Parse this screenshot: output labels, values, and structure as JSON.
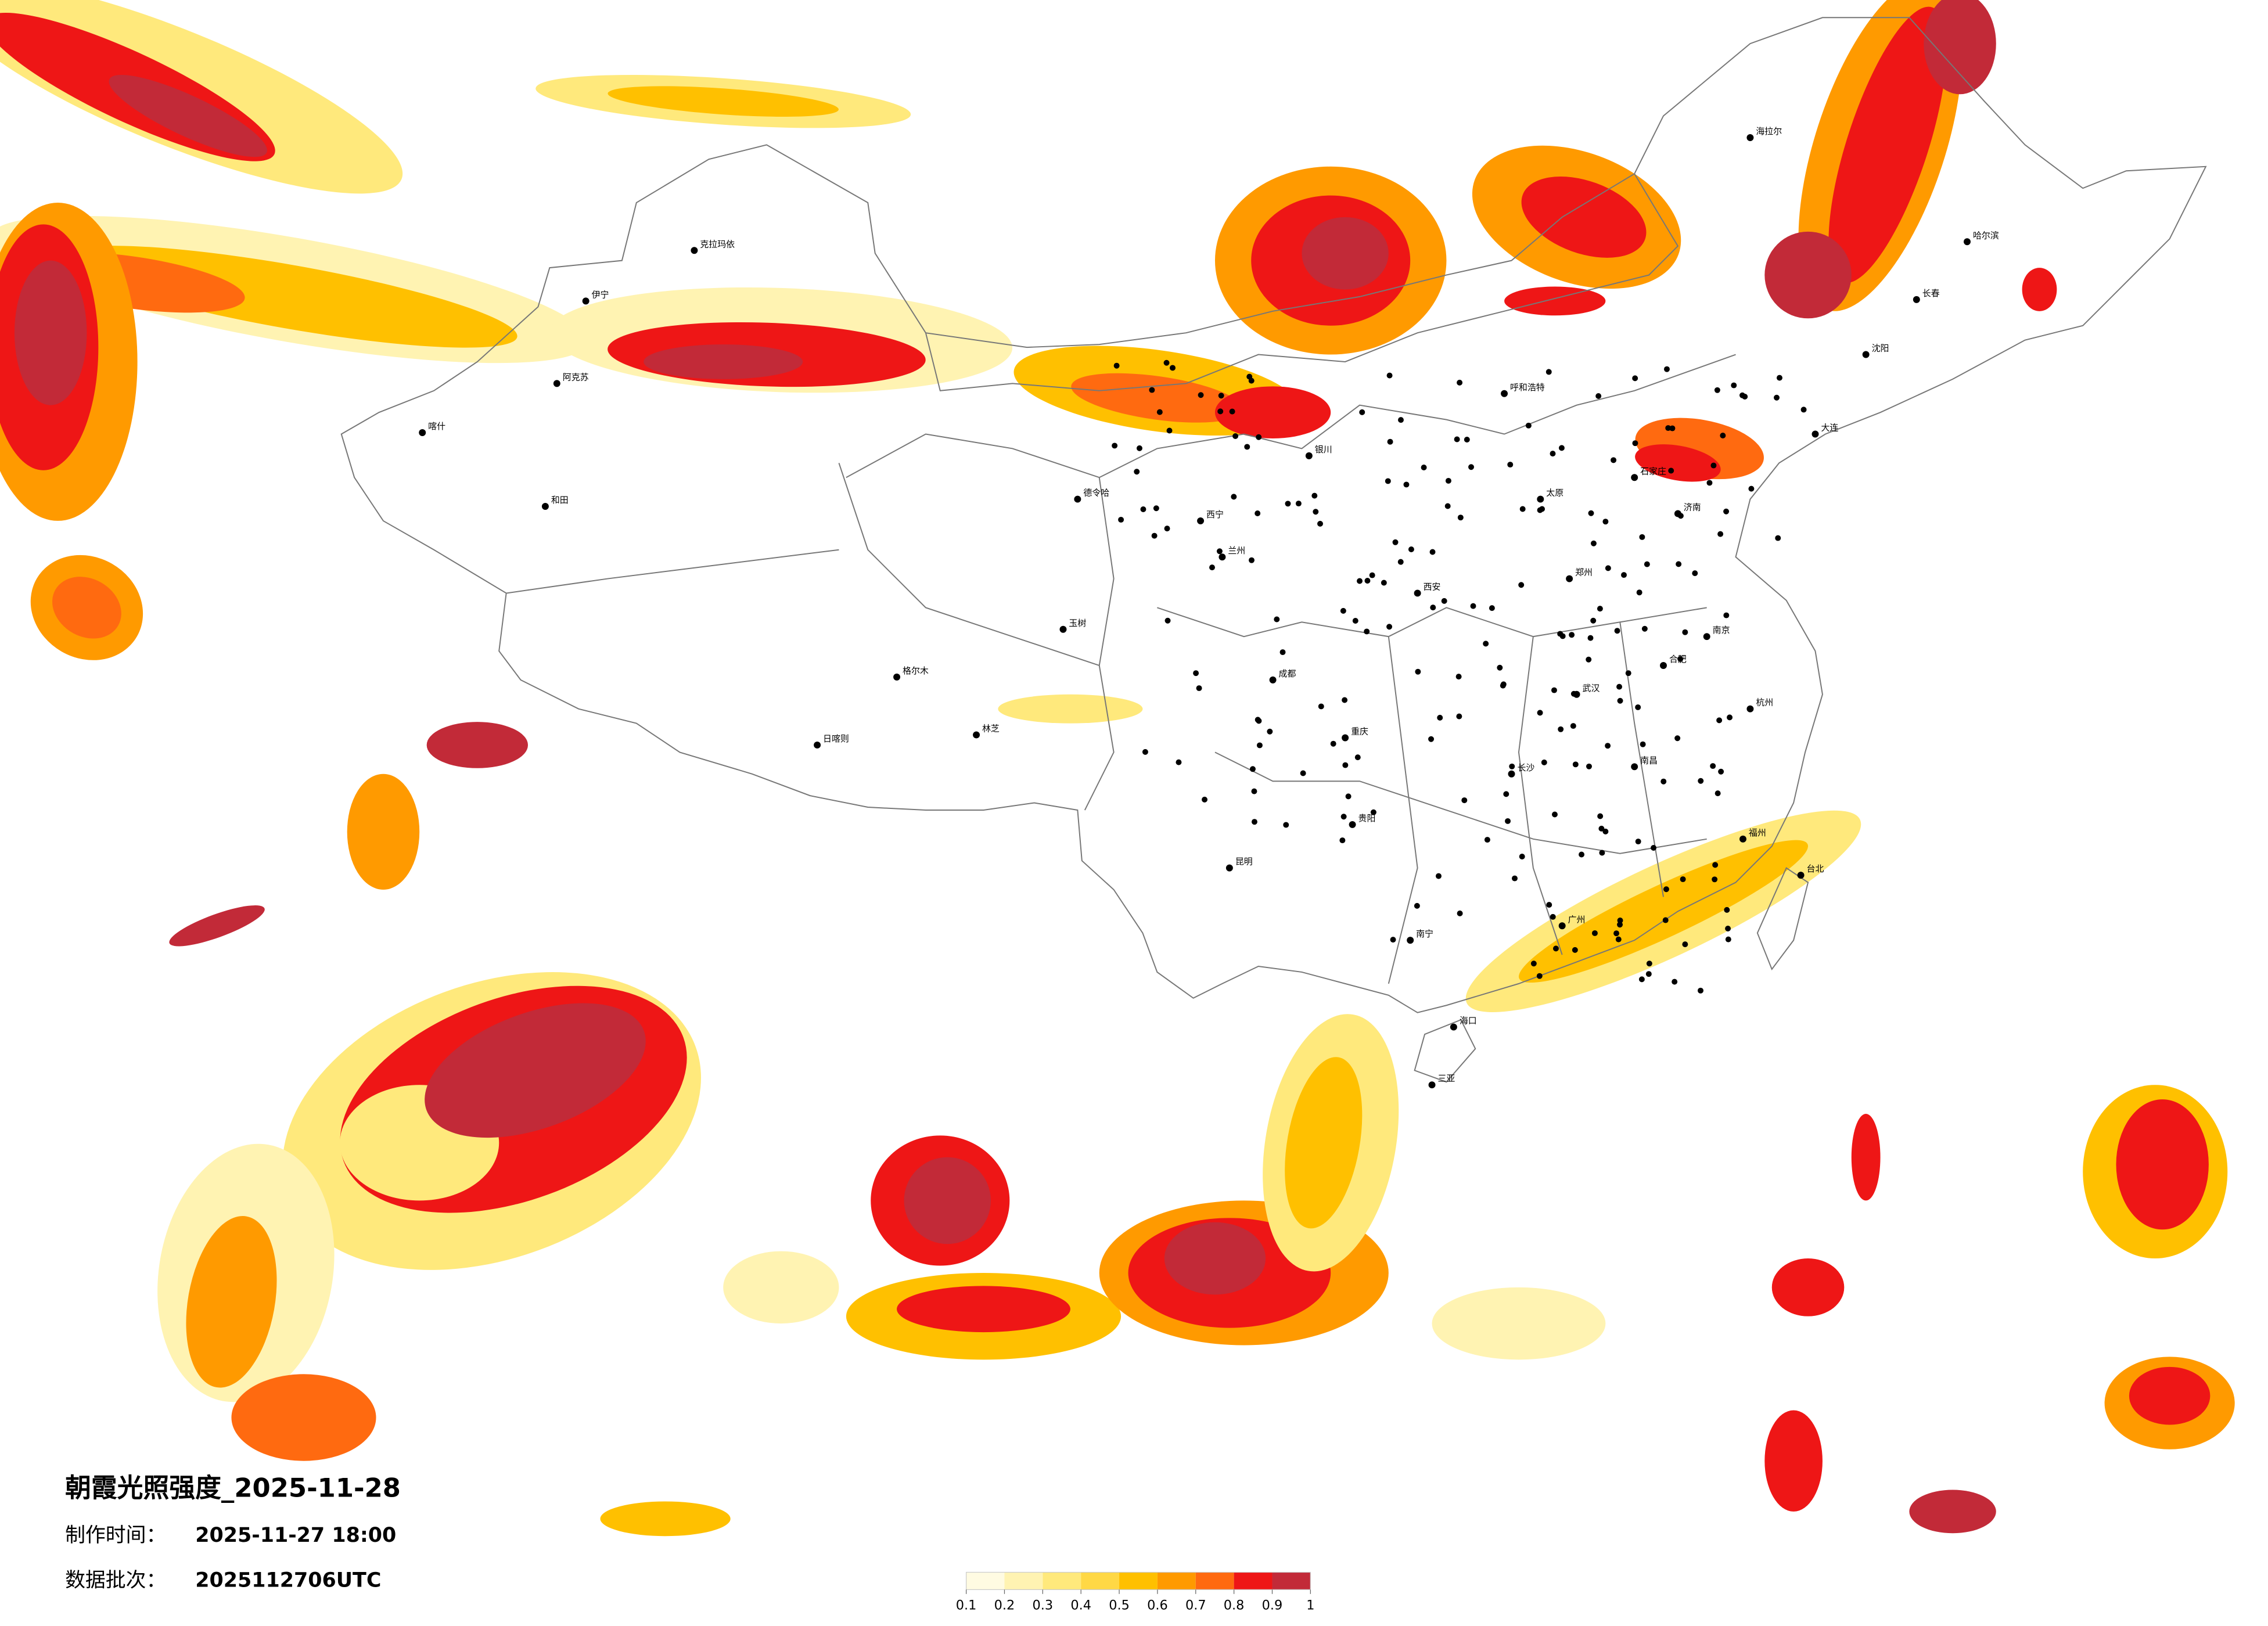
{
  "header": {
    "title": "朝霞光照强度_2025-11-28"
  },
  "info": [
    {
      "label": "制作时间：",
      "value": "2025-11-27 18:00"
    },
    {
      "label": "数据批次：",
      "value": "2025112706UTC"
    }
  ],
  "legend": {
    "colors": [
      "#fffbe2",
      "#fff3b2",
      "#ffe97c",
      "#ffd845",
      "#ffc000",
      "#ff9a00",
      "#ff6a10",
      "#ee1616",
      "#c22a38"
    ],
    "ticks": [
      0.1,
      0.2,
      0.3,
      0.4,
      0.5,
      0.6,
      0.7,
      0.8,
      0.9,
      1
    ]
  },
  "cities": [
    "克拉玛依",
    "伊宁",
    "阿克苏",
    "和田",
    "喀什",
    "格尔木",
    "日喀则",
    "林芝",
    "德令哈",
    "玉树",
    "西宁",
    "兰州",
    "银川",
    "呼和浩特",
    "海拉尔",
    "哈尔滨",
    "长春",
    "沈阳",
    "大连",
    "石家庄",
    "太原",
    "郑州",
    "西安",
    "成都",
    "重庆",
    "贵阳",
    "昆明",
    "南宁",
    "广州",
    "长沙",
    "武汉",
    "南京",
    "合肥",
    "杭州",
    "福州",
    "台北",
    "南昌",
    "济南",
    "海口",
    "三亚"
  ]
}
